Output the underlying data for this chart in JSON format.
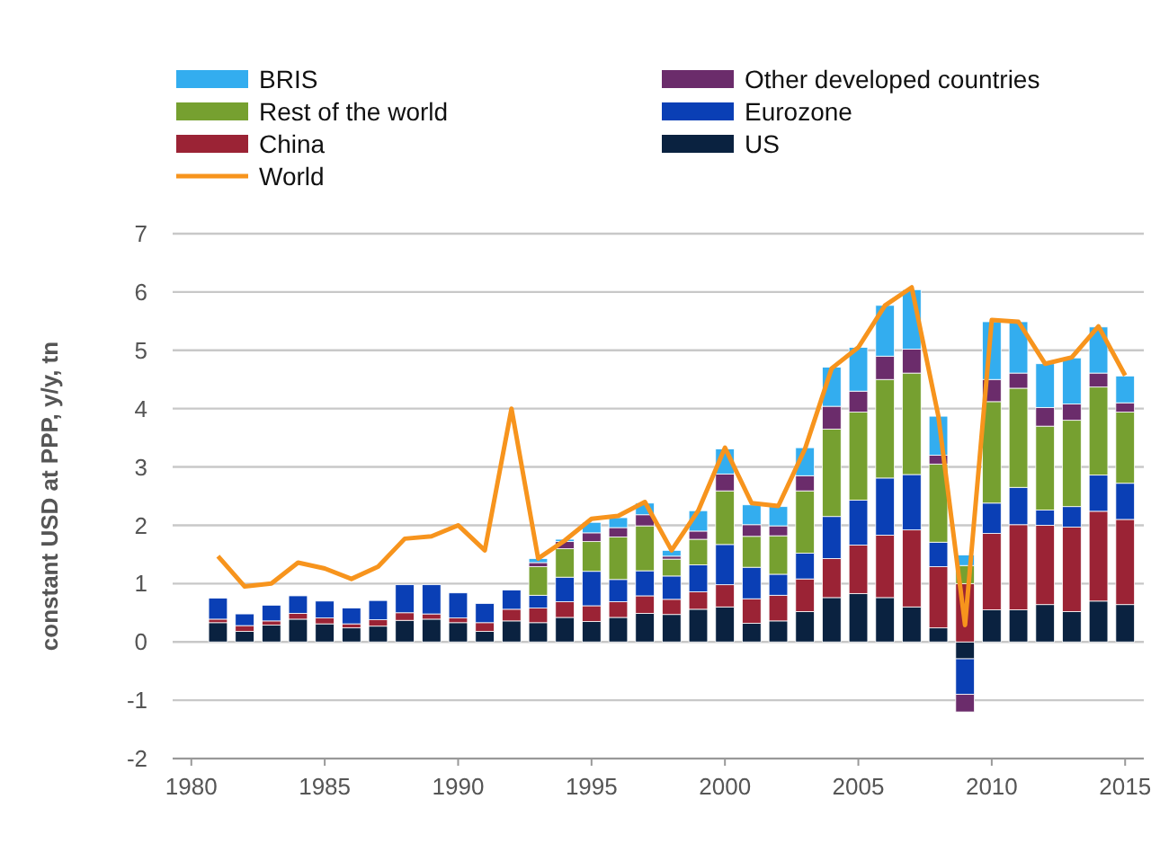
{
  "chart_data": {
    "type": "bar",
    "stacked": true,
    "ylabel": "constant USD at PPP, y/y, tn",
    "x": [
      1981,
      1982,
      1983,
      1984,
      1985,
      1986,
      1987,
      1988,
      1989,
      1990,
      1991,
      1992,
      1993,
      1994,
      1995,
      1996,
      1997,
      1998,
      1999,
      2000,
      2001,
      2002,
      2003,
      2004,
      2005,
      2006,
      2007,
      2008,
      2009,
      2010,
      2011,
      2012,
      2013,
      2014,
      2015
    ],
    "xlim": [
      1979.3,
      2015.7
    ],
    "xticks": [
      1980,
      1985,
      1990,
      1995,
      2000,
      2005,
      2010,
      2015
    ],
    "ylim": [
      -2,
      7
    ],
    "yticks": [
      -2,
      -1,
      0,
      1,
      2,
      3,
      4,
      5,
      6,
      7
    ],
    "grid": "y",
    "legend": "top",
    "series": [
      {
        "name": "US",
        "color": "#0a2240",
        "values": [
          0.33,
          0.18,
          0.29,
          0.39,
          0.31,
          0.24,
          0.27,
          0.37,
          0.39,
          0.33,
          0.18,
          0.36,
          0.33,
          0.42,
          0.35,
          0.42,
          0.49,
          0.47,
          0.56,
          0.6,
          0.32,
          0.36,
          0.52,
          0.76,
          0.83,
          0.76,
          0.6,
          0.24,
          -0.29,
          0.55,
          0.55,
          0.64,
          0.52,
          0.7,
          0.64
        ]
      },
      {
        "name": "China",
        "color": "#9b2335",
        "values": [
          0.06,
          0.1,
          0.07,
          0.1,
          0.1,
          0.07,
          0.11,
          0.13,
          0.09,
          0.08,
          0.15,
          0.2,
          0.25,
          0.27,
          0.27,
          0.27,
          0.3,
          0.26,
          0.3,
          0.38,
          0.42,
          0.44,
          0.56,
          0.67,
          0.83,
          1.07,
          1.32,
          1.05,
          1.0,
          1.31,
          1.46,
          1.36,
          1.45,
          1.54,
          1.46
        ]
      },
      {
        "name": "Eurozone",
        "color": "#0a3fb5",
        "values": [
          0.36,
          0.2,
          0.27,
          0.3,
          0.29,
          0.27,
          0.33,
          0.48,
          0.5,
          0.43,
          0.33,
          0.33,
          0.22,
          0.42,
          0.59,
          0.38,
          0.43,
          0.4,
          0.46,
          0.69,
          0.54,
          0.36,
          0.44,
          0.72,
          0.77,
          0.98,
          0.95,
          0.42,
          -0.61,
          0.52,
          0.64,
          0.26,
          0.35,
          0.62,
          0.62
        ]
      },
      {
        "name": "Rest of the world",
        "color": "#76a030",
        "values": [
          null,
          null,
          null,
          null,
          null,
          null,
          null,
          null,
          null,
          null,
          null,
          null,
          0.49,
          0.49,
          0.51,
          0.73,
          0.77,
          0.29,
          0.44,
          0.92,
          0.53,
          0.66,
          1.07,
          1.5,
          1.51,
          1.69,
          1.74,
          1.34,
          0.31,
          1.74,
          1.7,
          1.44,
          1.48,
          1.51,
          1.22
        ]
      },
      {
        "name": "Other developed countries",
        "color": "#6b2c6b",
        "values": [
          null,
          null,
          null,
          null,
          null,
          null,
          null,
          null,
          null,
          null,
          null,
          null,
          0.07,
          0.12,
          0.15,
          0.16,
          0.19,
          0.05,
          0.14,
          0.29,
          0.2,
          0.17,
          0.26,
          0.39,
          0.36,
          0.4,
          0.41,
          0.15,
          -0.3,
          0.38,
          0.26,
          0.32,
          0.28,
          0.24,
          0.16
        ]
      },
      {
        "name": "BRIS",
        "color": "#33adef",
        "values": [
          null,
          null,
          null,
          null,
          null,
          null,
          null,
          null,
          null,
          null,
          null,
          null,
          0.07,
          0.04,
          0.18,
          0.17,
          0.2,
          0.1,
          0.35,
          0.43,
          0.34,
          0.33,
          0.48,
          0.67,
          0.75,
          0.87,
          1.02,
          0.67,
          0.18,
          0.99,
          0.88,
          0.75,
          0.79,
          0.79,
          0.46
        ]
      },
      {
        "name": "World",
        "type": "line",
        "color": "#f7941d",
        "values": [
          1.47,
          0.95,
          1.0,
          1.36,
          1.26,
          1.08,
          1.29,
          1.77,
          1.81,
          2.0,
          1.57,
          4.0,
          1.43,
          1.74,
          2.11,
          2.16,
          2.4,
          1.57,
          2.25,
          3.33,
          2.38,
          2.33,
          3.31,
          4.69,
          5.05,
          5.77,
          6.08,
          3.87,
          0.29,
          5.52,
          5.49,
          4.77,
          4.88,
          5.41,
          4.57
        ]
      }
    ]
  }
}
